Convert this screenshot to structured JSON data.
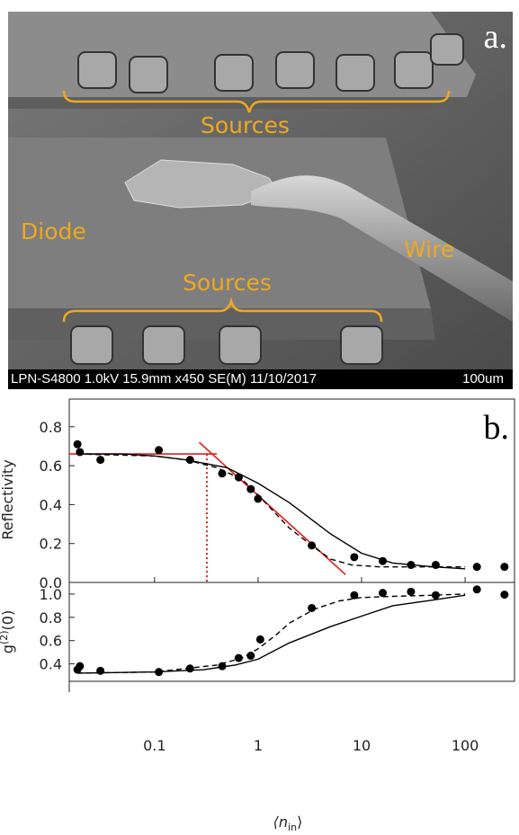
{
  "panel_a": {
    "label": "a.",
    "annotations": {
      "sources_top": "Sources",
      "sources_bottom": "Sources",
      "diode": "Diode",
      "wire": "Wire"
    },
    "scale_bar": {
      "info": "LPN-S4800 1.0kV 15.9mm x450 SE(M) 11/10/2017",
      "length": "100um"
    },
    "annotation_color": "#f0a81e"
  },
  "chart_data": [
    {
      "type": "scatter",
      "panel_label": "b.",
      "xlabel": "",
      "ylabel": "Reflectivity",
      "xscale": "log",
      "xlim": [
        0.015,
        300
      ],
      "ylim": [
        0.0,
        0.85
      ],
      "yticks": [
        "0.0",
        "0.2",
        "0.4",
        "0.6",
        "0.8"
      ],
      "points": {
        "x": [
          0.018,
          0.019,
          0.03,
          0.11,
          0.22,
          0.45,
          0.65,
          0.85,
          1.0,
          3.3,
          8.5,
          16,
          30,
          52,
          130,
          240
        ],
        "y": [
          0.71,
          0.67,
          0.63,
          0.68,
          0.63,
          0.56,
          0.54,
          0.48,
          0.43,
          0.19,
          0.13,
          0.11,
          0.09,
          0.09,
          0.08,
          0.08
        ]
      },
      "solid_line": {
        "x": [
          0.018,
          0.05,
          0.1,
          0.2,
          0.5,
          1.0,
          2.0,
          5.0,
          10,
          20,
          50,
          100
        ],
        "y": [
          0.66,
          0.66,
          0.65,
          0.63,
          0.59,
          0.51,
          0.41,
          0.25,
          0.15,
          0.1,
          0.08,
          0.07
        ]
      },
      "dashed_line": {
        "x": [
          0.018,
          0.1,
          0.2,
          0.4,
          0.7,
          1.0,
          1.5,
          2.0,
          3.3,
          5.0,
          8.0,
          15,
          30,
          100
        ],
        "y": [
          0.66,
          0.65,
          0.63,
          0.59,
          0.53,
          0.45,
          0.35,
          0.28,
          0.19,
          0.12,
          0.09,
          0.08,
          0.08,
          0.08
        ]
      },
      "fit_lines": {
        "color": "#e0201b",
        "plateau": {
          "x": [
            0.015,
            0.4
          ],
          "y": [
            0.66,
            0.66
          ]
        },
        "slope": {
          "x": [
            0.27,
            7.0
          ],
          "y": [
            0.72,
            0.04
          ]
        },
        "threshold_x": 0.32
      }
    },
    {
      "type": "scatter",
      "xlabel": "⟨n",
      "xlabel_sub": "in",
      "xlabel_close": "⟩",
      "ylabel": "g",
      "ylabel_sup": "(2)",
      "ylabel_rest": "(0)",
      "xscale": "log",
      "xlim": [
        0.015,
        300
      ],
      "ylim": [
        0.25,
        1.1
      ],
      "xticks": [
        "0.1",
        "1",
        "10",
        "100"
      ],
      "yticks": [
        "0.4",
        "0.6",
        "0.8",
        "1.0"
      ],
      "points": {
        "x": [
          0.018,
          0.019,
          0.03,
          0.11,
          0.22,
          0.45,
          0.65,
          0.85,
          1.05,
          3.3,
          8.5,
          16,
          30,
          52,
          130,
          240
        ],
        "y": [
          0.35,
          0.38,
          0.34,
          0.33,
          0.36,
          0.38,
          0.45,
          0.47,
          0.61,
          0.88,
          0.99,
          1.01,
          1.02,
          0.99,
          1.04,
          0.995
        ]
      },
      "solid_line": {
        "x": [
          0.018,
          0.1,
          0.3,
          0.6,
          1.0,
          2.0,
          5.0,
          10,
          20,
          50,
          100
        ],
        "y": [
          0.32,
          0.33,
          0.35,
          0.39,
          0.44,
          0.58,
          0.72,
          0.81,
          0.9,
          0.95,
          0.99
        ]
      },
      "dashed_line": {
        "x": [
          0.018,
          0.1,
          0.2,
          0.4,
          0.7,
          1.0,
          1.5,
          2.0,
          3.5,
          6.0,
          10,
          20,
          50,
          100
        ],
        "y": [
          0.32,
          0.33,
          0.36,
          0.39,
          0.45,
          0.53,
          0.65,
          0.75,
          0.87,
          0.94,
          0.97,
          0.98,
          0.99,
          1.0
        ]
      }
    }
  ]
}
